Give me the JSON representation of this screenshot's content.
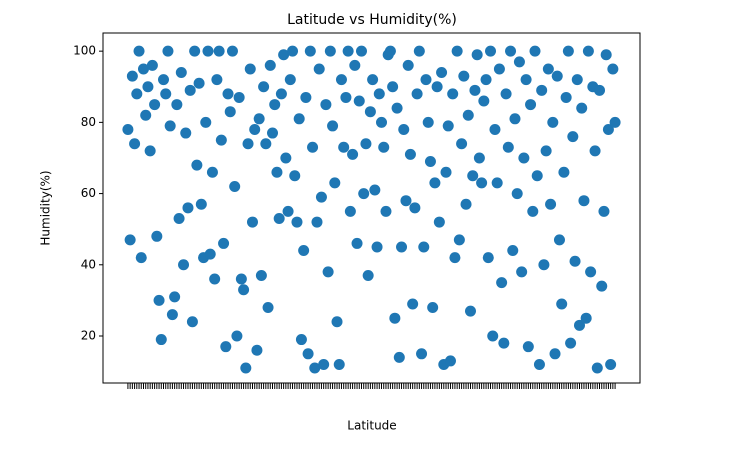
{
  "chart_data": {
    "type": "scatter",
    "title": "Latitude vs Humidity(%)",
    "x_label": "Latitude",
    "y_label": "Humidity(%)",
    "series": [
      {
        "color": "#1f77b4",
        "values": [
          78,
          47,
          93,
          74,
          88,
          100,
          42,
          95,
          82,
          90,
          72,
          96,
          85,
          48,
          30,
          19,
          92,
          88,
          100,
          79,
          26,
          31,
          85,
          53,
          94,
          40,
          77,
          56,
          89,
          24,
          100,
          68,
          91,
          57,
          42,
          80,
          100,
          43,
          66,
          36,
          92,
          100,
          75,
          46,
          17,
          88,
          83,
          100,
          62,
          20,
          87,
          36,
          33,
          11,
          74,
          95,
          52,
          78,
          16,
          81,
          37,
          90,
          74,
          28,
          96,
          77,
          85,
          66,
          53,
          88,
          99,
          70,
          55,
          92,
          100,
          65,
          52,
          81,
          19,
          44,
          87,
          15,
          100,
          73,
          11,
          52,
          95,
          59,
          12,
          85,
          38,
          100,
          79,
          63,
          24,
          12,
          92,
          73,
          87,
          100,
          55,
          71,
          96,
          46,
          86,
          100,
          60,
          74,
          37,
          83,
          92,
          61,
          45,
          88,
          80,
          73,
          55,
          99,
          100,
          90,
          25,
          84,
          14,
          45,
          78,
          58,
          96,
          71,
          29,
          56,
          88,
          100,
          15,
          45,
          92,
          80,
          69,
          28,
          63,
          90,
          52,
          94,
          12,
          66,
          79,
          13,
          88,
          42,
          100,
          47,
          74,
          93,
          57,
          82,
          27,
          65,
          89,
          99,
          70,
          63,
          86,
          92,
          42,
          100,
          20,
          78,
          63,
          95,
          35,
          18,
          88,
          73,
          100,
          44,
          81,
          60,
          97,
          38,
          70,
          92,
          17,
          85,
          55,
          100,
          65,
          12,
          89,
          40,
          72,
          95,
          57,
          80,
          15,
          93,
          47,
          29,
          66,
          87,
          100,
          18,
          76,
          41,
          92,
          23,
          84,
          58,
          25,
          100,
          38,
          90,
          72,
          11,
          89,
          34,
          55,
          99,
          78,
          12,
          95,
          80
        ]
      }
    ],
    "xlim": [
      -11.2,
      230.2
    ],
    "ylim": [
      6.8,
      105.1
    ],
    "yticks": [
      20,
      40,
      60,
      80,
      100
    ]
  }
}
